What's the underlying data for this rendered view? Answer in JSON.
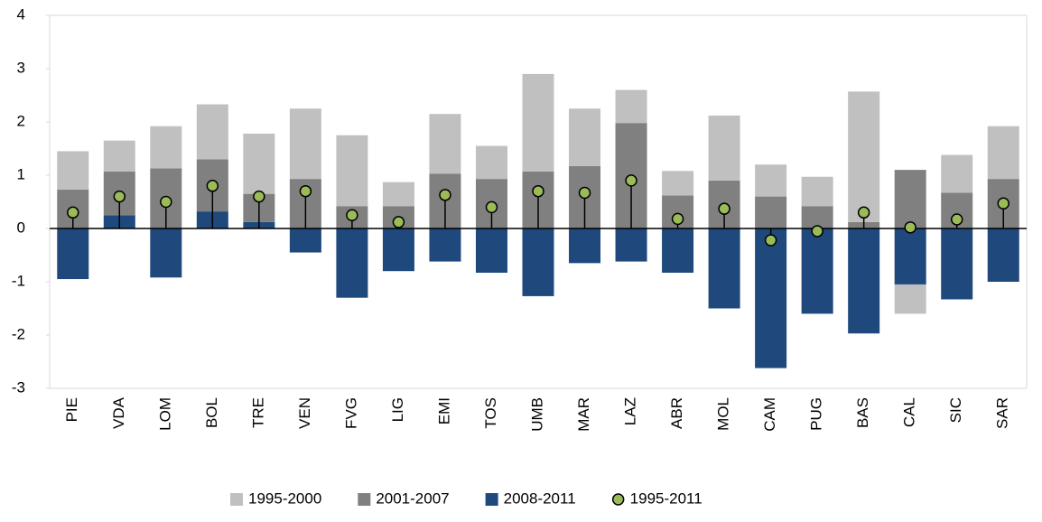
{
  "chart_data": {
    "type": "bar",
    "stacked": true,
    "categories": [
      "PIE",
      "VDA",
      "LOM",
      "BOL",
      "TRE",
      "VEN",
      "FVG",
      "LIG",
      "EMI",
      "TOS",
      "UMB",
      "MAR",
      "LAZ",
      "ABR",
      "MOL",
      "CAM",
      "PUG",
      "BAS",
      "CAL",
      "SIC",
      "SAR"
    ],
    "series": [
      {
        "name": "2008-2011",
        "color": "#1f497d",
        "values": [
          -0.95,
          0.25,
          -0.92,
          0.32,
          0.12,
          -0.45,
          -1.3,
          -0.8,
          -0.62,
          -0.83,
          -1.27,
          -0.65,
          -0.62,
          -0.83,
          -1.5,
          -2.62,
          -1.6,
          -1.97,
          -1.05,
          -1.33,
          -1.0
        ]
      },
      {
        "name": "2001-2007",
        "color": "#808080",
        "values": [
          0.73,
          0.82,
          1.13,
          0.98,
          0.53,
          0.93,
          0.42,
          0.42,
          1.03,
          0.93,
          1.07,
          1.17,
          1.98,
          0.62,
          0.9,
          0.6,
          0.42,
          0.12,
          1.1,
          0.67,
          0.93
        ]
      },
      {
        "name": "1995-2000",
        "color": "#c0c0c0",
        "values": [
          0.72,
          0.58,
          0.79,
          1.03,
          1.13,
          1.32,
          1.33,
          0.45,
          1.12,
          0.62,
          1.83,
          1.08,
          0.62,
          0.46,
          1.22,
          0.6,
          0.55,
          2.45,
          -0.55,
          0.71,
          0.99
        ]
      },
      {
        "name": "1995-2011",
        "color": "#9bbb59",
        "marker": "circle",
        "values": [
          0.3,
          0.6,
          0.5,
          0.8,
          0.6,
          0.7,
          0.25,
          0.12,
          0.63,
          0.4,
          0.7,
          0.67,
          0.9,
          0.18,
          0.37,
          -0.22,
          -0.05,
          0.3,
          0.02,
          0.17,
          0.47
        ]
      }
    ],
    "legend_order": [
      2,
      1,
      0,
      3
    ],
    "ylim": [
      -3,
      4
    ],
    "yticks": [
      -3,
      -2,
      -1,
      0,
      1,
      2,
      3,
      4
    ]
  }
}
